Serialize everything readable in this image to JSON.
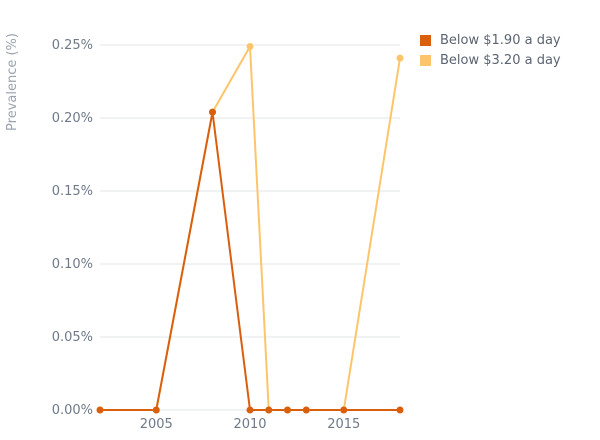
{
  "chart_data": {
    "type": "line",
    "title": "",
    "xlabel": "",
    "ylabel": "Prevalence (%)",
    "xlim": [
      2002,
      2018
    ],
    "ylim": [
      0,
      0.25
    ],
    "xticks": [
      2005,
      2010,
      2015
    ],
    "yticks": [
      0,
      0.05,
      0.1,
      0.15,
      0.2,
      0.25
    ],
    "ytick_labels": [
      "0.00%",
      "0.05%",
      "0.10%",
      "0.15%",
      "0.20%",
      "0.25%"
    ],
    "grid": "horizontal",
    "legend_position": "top-right",
    "series": [
      {
        "name": "Below $1.90 a day",
        "color": "#d95f0e",
        "x": [
          2002,
          2005,
          2008,
          2010,
          2011,
          2012,
          2013,
          2015,
          2018
        ],
        "y": [
          0,
          0,
          0.204,
          0,
          0,
          0,
          0,
          0,
          0
        ]
      },
      {
        "name": "Below $3.20 a day",
        "color": "#fdc56b",
        "x": [
          2002,
          2005,
          2008,
          2010,
          2011,
          2012,
          2013,
          2015,
          2018
        ],
        "y": [
          0,
          0,
          0.204,
          0.249,
          0,
          0,
          0,
          0,
          0.241
        ]
      }
    ]
  }
}
